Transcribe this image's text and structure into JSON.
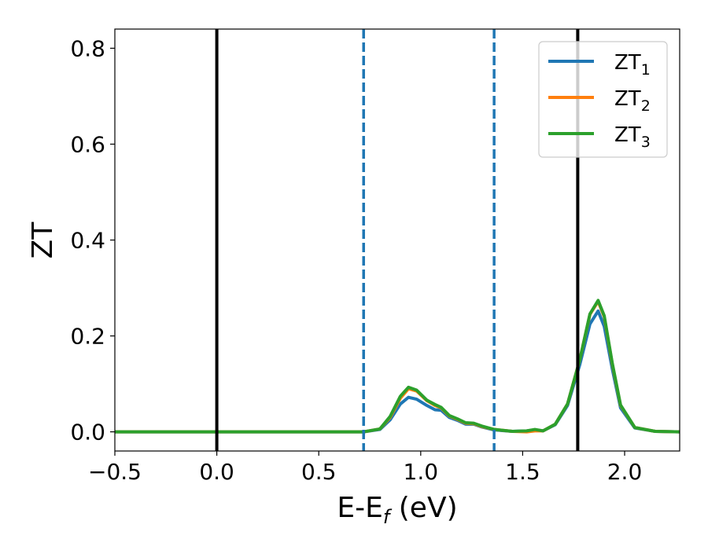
{
  "chart_data": {
    "type": "line",
    "xlabel": "E-E",
    "xlabel_sub": "f",
    "xlabel_suffix": " (eV)",
    "ylabel": "ZT",
    "xlim": [
      -0.5,
      2.27
    ],
    "ylim": [
      -0.04,
      0.84
    ],
    "xticks": [
      {
        "value": -0.5,
        "label": "−0.5"
      },
      {
        "value": 0.0,
        "label": "0.0"
      },
      {
        "value": 0.5,
        "label": "0.5"
      },
      {
        "value": 1.0,
        "label": "1.0"
      },
      {
        "value": 1.5,
        "label": "1.5"
      },
      {
        "value": 2.0,
        "label": "2.0"
      }
    ],
    "yticks": [
      {
        "value": 0.0,
        "label": "0.0"
      },
      {
        "value": 0.2,
        "label": "0.2"
      },
      {
        "value": 0.4,
        "label": "0.4"
      },
      {
        "value": 0.6,
        "label": "0.6"
      },
      {
        "value": 0.8,
        "label": "0.8"
      }
    ],
    "vlines": [
      {
        "x": 0.0,
        "color": "#000000",
        "style": "solid"
      },
      {
        "x": 0.72,
        "color": "#1f77b4",
        "style": "dashed"
      },
      {
        "x": 1.36,
        "color": "#1f77b4",
        "style": "dashed"
      },
      {
        "x": 1.77,
        "color": "#000000",
        "style": "solid"
      }
    ],
    "legend": {
      "placement": "top-right"
    },
    "series": [
      {
        "name": "ZT",
        "sub": "1",
        "color": "#1f77b4",
        "x": [
          -0.5,
          0.0,
          0.5,
          0.72,
          0.8,
          0.85,
          0.9,
          0.94,
          0.98,
          1.03,
          1.07,
          1.1,
          1.14,
          1.18,
          1.22,
          1.26,
          1.3,
          1.36,
          1.45,
          1.52,
          1.56,
          1.6,
          1.66,
          1.72,
          1.78,
          1.83,
          1.87,
          1.9,
          1.94,
          1.98,
          2.05,
          2.15,
          2.27
        ],
        "y": [
          0.0,
          0.0,
          0.0,
          0.0,
          0.005,
          0.025,
          0.058,
          0.072,
          0.068,
          0.055,
          0.046,
          0.045,
          0.03,
          0.024,
          0.016,
          0.016,
          0.01,
          0.004,
          0.001,
          0.002,
          0.004,
          0.002,
          0.015,
          0.055,
          0.14,
          0.225,
          0.252,
          0.22,
          0.13,
          0.05,
          0.008,
          0.001,
          0.0
        ]
      },
      {
        "name": "ZT",
        "sub": "2",
        "color": "#ff7f0e",
        "x": [
          -0.5,
          0.0,
          0.5,
          0.72,
          0.8,
          0.85,
          0.9,
          0.94,
          0.98,
          1.03,
          1.07,
          1.1,
          1.14,
          1.18,
          1.22,
          1.26,
          1.3,
          1.36,
          1.45,
          1.52,
          1.56,
          1.6,
          1.66,
          1.72,
          1.78,
          1.83,
          1.87,
          1.9,
          1.94,
          1.98,
          2.05,
          2.15,
          2.27
        ],
        "y": [
          0.0,
          0.0,
          0.0,
          0.0,
          0.006,
          0.03,
          0.07,
          0.09,
          0.085,
          0.065,
          0.055,
          0.05,
          0.033,
          0.026,
          0.018,
          0.017,
          0.011,
          0.005,
          0.001,
          0.0,
          0.002,
          0.002,
          0.016,
          0.058,
          0.15,
          0.245,
          0.272,
          0.24,
          0.14,
          0.055,
          0.009,
          0.001,
          0.0
        ]
      },
      {
        "name": "ZT",
        "sub": "3",
        "color": "#2ca02c",
        "x": [
          -0.5,
          0.0,
          0.5,
          0.72,
          0.8,
          0.85,
          0.9,
          0.94,
          0.98,
          1.03,
          1.07,
          1.1,
          1.14,
          1.18,
          1.22,
          1.26,
          1.3,
          1.36,
          1.45,
          1.52,
          1.56,
          1.6,
          1.66,
          1.72,
          1.78,
          1.83,
          1.87,
          1.9,
          1.94,
          1.98,
          2.05,
          2.15,
          2.27
        ],
        "y": [
          0.0,
          0.0,
          0.0,
          0.0,
          0.006,
          0.032,
          0.074,
          0.093,
          0.087,
          0.066,
          0.057,
          0.051,
          0.034,
          0.027,
          0.019,
          0.018,
          0.012,
          0.005,
          0.001,
          0.002,
          0.005,
          0.002,
          0.016,
          0.058,
          0.15,
          0.246,
          0.274,
          0.242,
          0.142,
          0.056,
          0.009,
          0.001,
          0.0
        ]
      }
    ]
  }
}
